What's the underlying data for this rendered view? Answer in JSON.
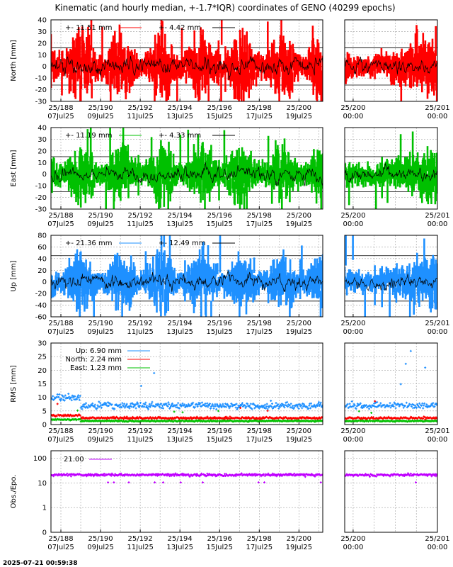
{
  "title": "Kinematic (and hourly median, +-1.7*IQR) coordinates of GENO (40299 epochs)",
  "timestamp": "2025-07-21 00:59:38",
  "colors": {
    "north": "#ff0000",
    "east": "#00c000",
    "up": "#1e90ff",
    "obs": "#c000ff",
    "median": "#000000"
  },
  "chart_data": [
    {
      "type": "line",
      "id": "north",
      "ylabel": "North [mm]",
      "ylim": [
        -30,
        40
      ],
      "yticks": [
        -30,
        -20,
        -10,
        0,
        10,
        20,
        30,
        40
      ],
      "series": [
        {
          "name": "+-   11.51 mm",
          "color": "#ff0000"
        },
        {
          "name": "+-   4.42 mm",
          "color": "#000000"
        }
      ],
      "iqr_lines": [
        -16,
        0,
        16
      ],
      "noise": 10
    },
    {
      "type": "line",
      "id": "east",
      "ylabel": "East [mm]",
      "ylim": [
        -30,
        40
      ],
      "yticks": [
        -30,
        -20,
        -10,
        0,
        10,
        20,
        30,
        40
      ],
      "series": [
        {
          "name": "+-   11.19 mm",
          "color": "#00c000"
        },
        {
          "name": "+-   4.33 mm",
          "color": "#000000"
        }
      ],
      "iqr_lines": [
        -15,
        0,
        15
      ],
      "noise": 9
    },
    {
      "type": "line",
      "id": "up",
      "ylabel": "Up [mm]",
      "ylim": [
        -60,
        80
      ],
      "yticks": [
        -60,
        -40,
        -20,
        0,
        20,
        40,
        60,
        80
      ],
      "series": [
        {
          "name": "+-   21.36 mm",
          "color": "#1e90ff"
        },
        {
          "name": "+-   12.49 mm",
          "color": "#000000"
        }
      ],
      "iqr_lines": [
        -33,
        0,
        45
      ],
      "noise": 18
    },
    {
      "type": "scatter",
      "id": "rms",
      "ylabel": "RMS [mm]",
      "ylim": [
        0,
        30
      ],
      "yticks": [
        0,
        5,
        10,
        15,
        20,
        25,
        30
      ],
      "series": [
        {
          "name": "Up:   6.90 mm",
          "color": "#1e90ff",
          "level": 7
        },
        {
          "name": "North:   2.24 mm",
          "color": "#ff0000",
          "level": 2.4
        },
        {
          "name": "East:   1.23 mm",
          "color": "#00c000",
          "level": 1.3
        }
      ]
    },
    {
      "type": "scatter",
      "id": "obs",
      "ylabel": "Obs./Epo.",
      "yscale": "log",
      "ylim": [
        0.1,
        200
      ],
      "yticks": [
        0.1,
        1,
        10,
        100
      ],
      "yticklabels": [
        "0",
        "1",
        "10",
        "100"
      ],
      "series": [
        {
          "name": "21.00",
          "color": "#c000ff",
          "level": 21
        }
      ]
    }
  ],
  "x_main": {
    "domain": [
      187.5,
      201.2
    ],
    "ticks": [
      {
        "doy": 188,
        "l1": "25/188",
        "l2": "07Jul25"
      },
      {
        "doy": 190,
        "l1": "25/190",
        "l2": "09Jul25"
      },
      {
        "doy": 192,
        "l1": "25/192",
        "l2": "11Jul25"
      },
      {
        "doy": 194,
        "l1": "25/194",
        "l2": "13Jul25"
      },
      {
        "doy": 196,
        "l1": "25/196",
        "l2": "15Jul25"
      },
      {
        "doy": 198,
        "l1": "25/198",
        "l2": "17Jul25"
      },
      {
        "doy": 200,
        "l1": "25/200",
        "l2": "19Jul25"
      }
    ]
  },
  "x_zoom": {
    "domain": [
      199.9,
      201.0
    ],
    "ticks": [
      {
        "doy": 200,
        "l1": "25/200",
        "l2": "00:00"
      },
      {
        "doy": 201,
        "l1": "25/201",
        "l2": "00:00"
      }
    ]
  }
}
